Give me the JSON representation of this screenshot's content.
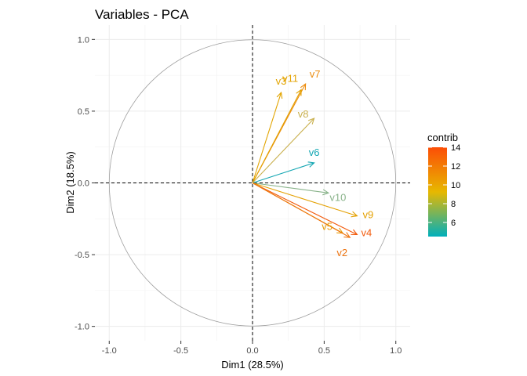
{
  "chart_data": {
    "type": "scatter",
    "subtype": "pca-variable-correlation-circle",
    "title": "Variables - PCA",
    "xlabel": "Dim1 (28.5%)",
    "ylabel": "Dim2 (18.5%)",
    "xlim": [
      -1.1,
      1.1
    ],
    "ylim": [
      -1.1,
      1.1
    ],
    "x_ticks": [
      "-1.0",
      "-0.5",
      "0.0",
      "0.5",
      "1.0"
    ],
    "y_ticks": [
      "-1.0",
      "-0.5",
      "0.0",
      "0.5",
      "1.0"
    ],
    "grid": true,
    "unit_circle": true,
    "reference_lines": "dashed at x=0 and y=0",
    "variables": [
      {
        "name": "v7",
        "x": 0.37,
        "y": 0.69,
        "contrib": 12.5,
        "color": "#ec8c0e"
      },
      {
        "name": "v3",
        "x": 0.2,
        "y": 0.63,
        "contrib": 10.6,
        "color": "#e2a400"
      },
      {
        "name": "v11",
        "x": 0.34,
        "y": 0.65,
        "contrib": 11.0,
        "color": "#e3a200"
      },
      {
        "name": "v8",
        "x": 0.43,
        "y": 0.45,
        "contrib": 9.2,
        "color": "#c9b04e"
      },
      {
        "name": "v6",
        "x": 0.43,
        "y": 0.14,
        "contrib": 5.0,
        "color": "#13a6b2"
      },
      {
        "name": "v10",
        "x": 0.53,
        "y": -0.07,
        "contrib": 7.3,
        "color": "#89b38a"
      },
      {
        "name": "v9",
        "x": 0.73,
        "y": -0.23,
        "contrib": 11.5,
        "color": "#e4a000"
      },
      {
        "name": "v4",
        "x": 0.73,
        "y": -0.36,
        "contrib": 14.0,
        "color": "#f2590a"
      },
      {
        "name": "v5",
        "x": 0.63,
        "y": -0.35,
        "contrib": 11.7,
        "color": "#e79a06"
      },
      {
        "name": "v2",
        "x": 0.68,
        "y": -0.38,
        "contrib": 13.2,
        "color": "#ee7410"
      }
    ],
    "legend": {
      "title": "contrib",
      "placement": "right",
      "range": [
        4.5,
        14
      ],
      "ticks": [
        "14",
        "12",
        "10",
        "8",
        "6"
      ],
      "gradient": [
        "#00AFBB",
        "#E7B800",
        "#FC4E07"
      ]
    }
  }
}
